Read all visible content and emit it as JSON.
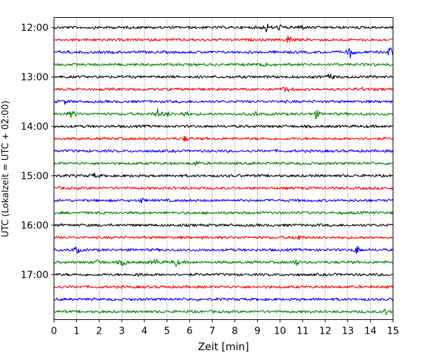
{
  "chart_data": {
    "type": "line",
    "title": "",
    "xlabel": "Zeit  [min]",
    "ylabel": "UTC (Lokalzeit = UTC + 02:00)",
    "xlim": [
      0,
      15
    ],
    "x_ticks": [
      "0",
      "1",
      "2",
      "3",
      "4",
      "5",
      "6",
      "7",
      "8",
      "9",
      "10",
      "11",
      "12",
      "13",
      "14",
      "15"
    ],
    "y_ticks": [
      "12:00",
      "13:00",
      "14:00",
      "15:00",
      "16:00",
      "17:00"
    ],
    "grid": "vertical dotted at each minute",
    "trace_colors": [
      "#000000",
      "#ff0000",
      "#0000ff",
      "#008000"
    ],
    "traces": [
      {
        "start": "12:00",
        "color": "#000000",
        "events": [
          {
            "t": 9.4,
            "amp": 2.0
          },
          {
            "t": 10.0,
            "amp": 1.2
          },
          {
            "t": 10.9,
            "amp": 1.6
          }
        ]
      },
      {
        "start": "12:15",
        "color": "#ff0000",
        "events": [
          {
            "t": 10.4,
            "amp": 2.6
          }
        ]
      },
      {
        "start": "12:30",
        "color": "#0000ff",
        "events": [
          {
            "t": 13.1,
            "amp": 2.6
          },
          {
            "t": 14.9,
            "amp": 3.0
          }
        ]
      },
      {
        "start": "12:45",
        "color": "#008000",
        "events": [
          {
            "t": 9.3,
            "amp": 2.4
          }
        ]
      },
      {
        "start": "13:00",
        "color": "#000000",
        "events": [
          {
            "t": 12.2,
            "amp": 1.6
          }
        ]
      },
      {
        "start": "13:15",
        "color": "#ff0000",
        "events": [
          {
            "t": 10.3,
            "amp": 1.8
          },
          {
            "t": 13.6,
            "amp": 0.9
          }
        ]
      },
      {
        "start": "13:30",
        "color": "#0000ff",
        "events": [
          {
            "t": 0.5,
            "amp": 0.9
          }
        ]
      },
      {
        "start": "13:45",
        "color": "#008000",
        "events": [
          {
            "t": 0.8,
            "amp": 2.0
          },
          {
            "t": 4.6,
            "amp": 2.2
          },
          {
            "t": 5.0,
            "amp": 1.2
          },
          {
            "t": 5.8,
            "amp": 1.6
          },
          {
            "t": 8.9,
            "amp": 1.0
          },
          {
            "t": 11.6,
            "amp": 2.0
          }
        ]
      },
      {
        "start": "14:00",
        "color": "#000000",
        "events": []
      },
      {
        "start": "14:15",
        "color": "#ff0000",
        "events": [
          {
            "t": 5.8,
            "amp": 1.2
          }
        ]
      },
      {
        "start": "14:30",
        "color": "#0000ff",
        "events": []
      },
      {
        "start": "14:45",
        "color": "#008000",
        "events": [
          {
            "t": 6.3,
            "amp": 0.8
          }
        ]
      },
      {
        "start": "15:00",
        "color": "#000000",
        "events": [
          {
            "t": 1.8,
            "amp": 1.0
          }
        ]
      },
      {
        "start": "15:15",
        "color": "#ff0000",
        "events": []
      },
      {
        "start": "15:30",
        "color": "#0000ff",
        "events": [
          {
            "t": 3.9,
            "amp": 1.0
          }
        ]
      },
      {
        "start": "15:45",
        "color": "#008000",
        "events": []
      },
      {
        "start": "16:00",
        "color": "#000000",
        "events": []
      },
      {
        "start": "16:15",
        "color": "#ff0000",
        "events": [
          {
            "t": 10.8,
            "amp": 1.4
          }
        ]
      },
      {
        "start": "16:30",
        "color": "#0000ff",
        "events": [
          {
            "t": 1.0,
            "amp": 1.8
          },
          {
            "t": 13.4,
            "amp": 2.0
          }
        ]
      },
      {
        "start": "16:45",
        "color": "#008000",
        "events": [
          {
            "t": 2.0,
            "amp": 1.6
          },
          {
            "t": 3.1,
            "amp": 2.0
          },
          {
            "t": 4.5,
            "amp": 1.8
          },
          {
            "t": 5.4,
            "amp": 1.6
          },
          {
            "t": 10.7,
            "amp": 1.6
          }
        ]
      },
      {
        "start": "17:00",
        "color": "#000000",
        "events": [
          {
            "t": 3.8,
            "amp": 1.0
          }
        ]
      },
      {
        "start": "17:15",
        "color": "#ff0000",
        "events": []
      },
      {
        "start": "17:30",
        "color": "#0000ff",
        "events": []
      },
      {
        "start": "17:45",
        "color": "#008000",
        "events": [
          {
            "t": 14.7,
            "amp": 1.4
          }
        ]
      }
    ]
  }
}
